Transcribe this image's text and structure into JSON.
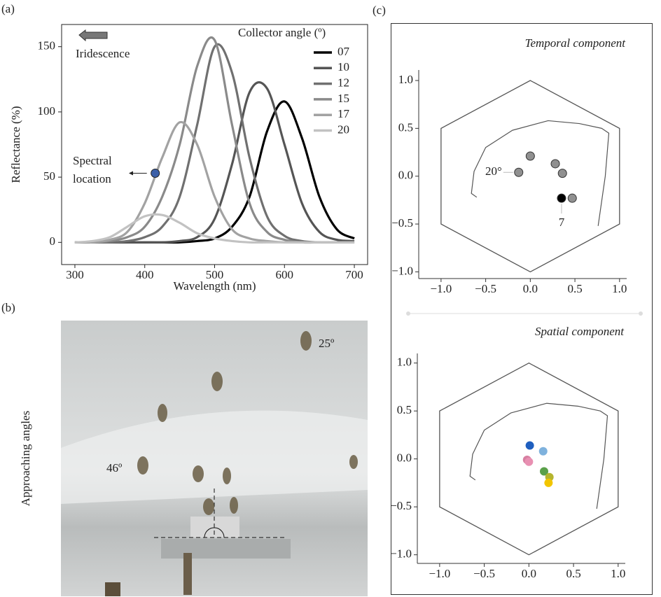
{
  "panel_labels": [
    "(a)",
    "(b)",
    "(c)"
  ],
  "photo": {
    "ylabel": "Approaching angles",
    "annotations": [
      "25º",
      "46º"
    ]
  },
  "chart_data": [
    {
      "type": "line",
      "xlabel": "Wavelength (nm)",
      "ylabel": "Reflectance (%)",
      "legend_title": "Collector angle (º)",
      "arrow_label": "Iridescence",
      "marker_label": [
        "Spectral",
        "location"
      ],
      "marker": {
        "x": 415,
        "y": 53,
        "color": "#3b5fa8"
      },
      "x": [
        300,
        325,
        350,
        375,
        400,
        425,
        450,
        475,
        500,
        525,
        550,
        575,
        600,
        625,
        650,
        675,
        700
      ],
      "series": [
        {
          "name": "07",
          "color": "#000000",
          "values": [
            0,
            0,
            0,
            0,
            0,
            0,
            0,
            1,
            3,
            12,
            35,
            85,
            108,
            80,
            35,
            10,
            3
          ]
        },
        {
          "name": "10",
          "color": "#555555",
          "values": [
            0,
            0,
            0,
            0,
            0,
            0,
            1,
            4,
            18,
            60,
            115,
            118,
            75,
            30,
            8,
            2,
            1
          ]
        },
        {
          "name": "12",
          "color": "#707070",
          "values": [
            0,
            0,
            0,
            1,
            4,
            12,
            35,
            90,
            150,
            130,
            65,
            20,
            5,
            1,
            0,
            0,
            0
          ]
        },
        {
          "name": "15",
          "color": "#8a8a8a",
          "values": [
            0,
            0,
            1,
            4,
            12,
            35,
            75,
            135,
            155,
            90,
            30,
            8,
            2,
            0,
            0,
            0,
            0
          ]
        },
        {
          "name": "17",
          "color": "#a2a2a2",
          "values": [
            0,
            0,
            2,
            8,
            30,
            65,
            92,
            75,
            35,
            10,
            3,
            1,
            0,
            0,
            0,
            0,
            0
          ]
        },
        {
          "name": "20",
          "color": "#c2c2c2",
          "values": [
            0,
            1,
            4,
            12,
            20,
            21,
            15,
            7,
            3,
            1,
            0,
            0,
            0,
            0,
            0,
            0,
            0
          ]
        }
      ],
      "xlim": [
        281,
        719
      ],
      "ylim": [
        -17,
        167
      ],
      "xticks": [
        300,
        400,
        500,
        600,
        700
      ],
      "yticks": [
        0,
        50,
        100,
        150
      ]
    },
    {
      "type": "scatter",
      "title": "Temporal component",
      "x": [
        -0.13,
        0.0,
        0.28,
        0.36,
        0.35,
        0.47
      ],
      "y": [
        0.04,
        0.21,
        0.13,
        0.03,
        -0.23,
        -0.23
      ],
      "colors": [
        "#909090",
        "#909090",
        "#909090",
        "#909090",
        "#000000",
        "#909090"
      ],
      "labels": [
        "20°",
        null,
        null,
        null,
        "7",
        null
      ],
      "xlim": [
        -1.25,
        1.08
      ],
      "ylim": [
        -1.07,
        1.11
      ],
      "xticks": [
        {
          "value": -1,
          "label": "−1.0"
        },
        {
          "value": -0.5,
          "label": "−0.5"
        },
        {
          "value": 0,
          "label": "0.0"
        },
        0.5,
        {
          "value": 1,
          "label": "1.0"
        }
      ],
      "yticks": [
        {
          "value": -1,
          "label": "−1.0"
        },
        {
          "value": -0.5,
          "label": "−0.5"
        },
        {
          "value": 0,
          "label": "0.0"
        },
        0.5,
        {
          "value": 1,
          "label": "1.0"
        }
      ]
    },
    {
      "type": "scatter",
      "title": "Spatial component",
      "x": [
        0.01,
        0.16,
        -0.02,
        0.0,
        0.17,
        0.23,
        0.22
      ],
      "y": [
        0.14,
        0.08,
        -0.01,
        -0.03,
        -0.13,
        -0.19,
        -0.25
      ],
      "colors": [
        "#1f5fbf",
        "#7fb2dd",
        "#d77fa1",
        "#e890b2",
        "#5aa04a",
        "#b5b52f",
        "#f2c500"
      ],
      "xlim": [
        -1.25,
        1.08
      ],
      "ylim": [
        -1.09,
        1.1
      ],
      "xticks": [
        {
          "value": -1,
          "label": "−1.0"
        },
        {
          "value": -0.5,
          "label": "−0.5"
        },
        {
          "value": 0,
          "label": "0.0"
        },
        0.5,
        {
          "value": 1,
          "label": "1.0"
        }
      ],
      "yticks": [
        {
          "value": -1,
          "label": "−1.0"
        },
        {
          "value": -0.5,
          "label": "−0.5"
        },
        {
          "value": 0,
          "label": "0.0"
        },
        0.5,
        {
          "value": 1,
          "label": "1.0"
        }
      ]
    }
  ]
}
